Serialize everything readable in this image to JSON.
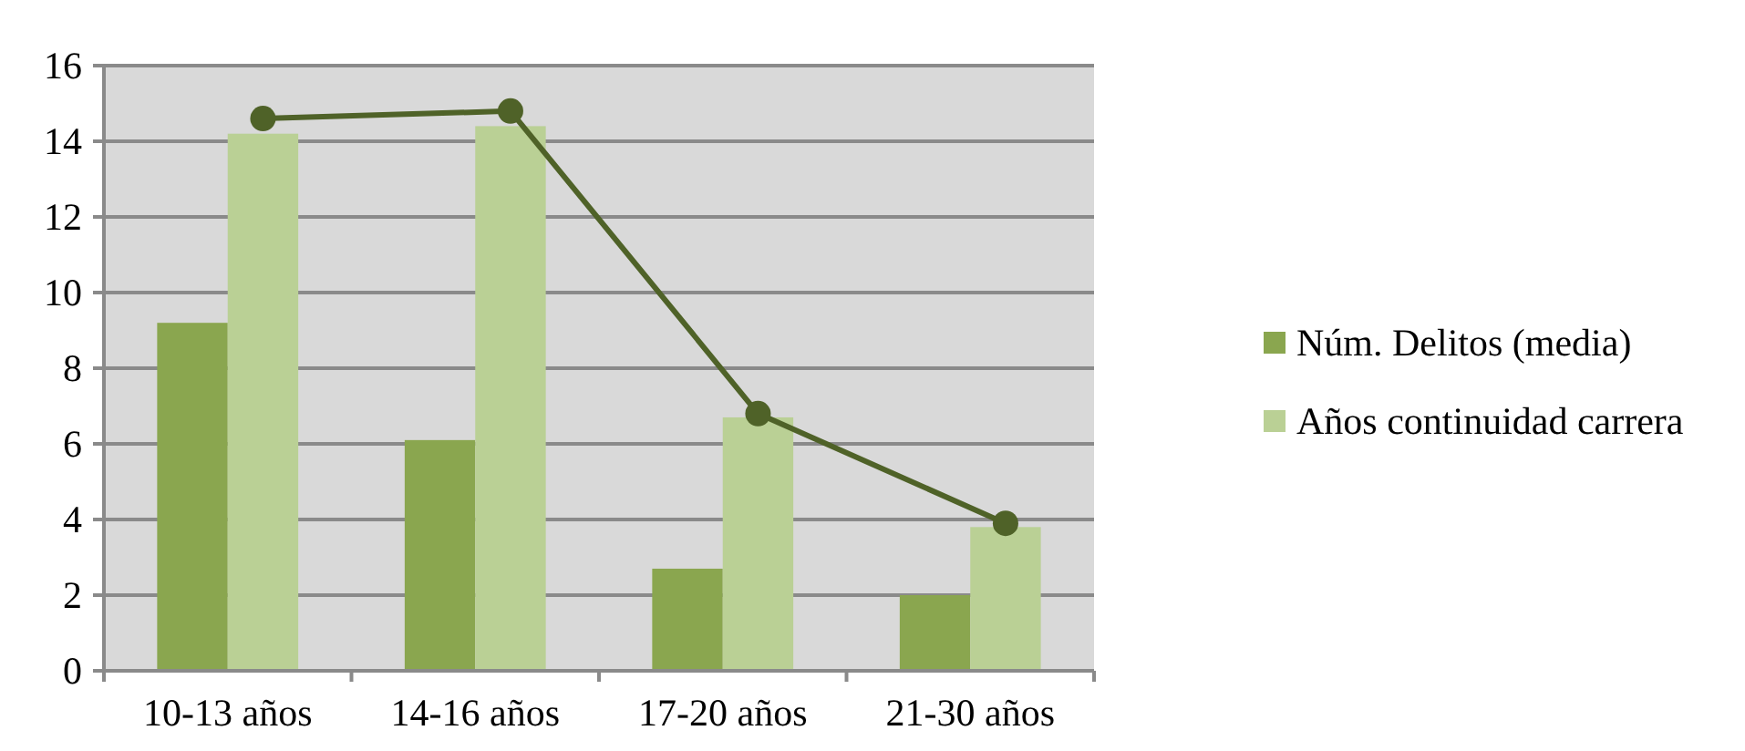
{
  "chart_data": {
    "type": "bar",
    "categories": [
      "10-13 años",
      "14-16 años",
      "17-20 años",
      "21-30 años"
    ],
    "series": [
      {
        "name": "Núm. Delitos (media)",
        "color": "#8aa64f",
        "values": [
          9.2,
          6.1,
          2.7,
          2.0
        ]
      },
      {
        "name": "Años continuidad carrera",
        "color": "#bad095",
        "values": [
          14.2,
          14.4,
          6.7,
          3.8
        ]
      },
      {
        "type": "line",
        "color": "#4f6228",
        "values": [
          14.6,
          14.8,
          6.8,
          3.9
        ]
      }
    ],
    "ylim": [
      0,
      16
    ],
    "yticks": [
      0,
      2,
      4,
      6,
      8,
      10,
      12,
      14,
      16
    ],
    "grid": "y",
    "legend": "right",
    "marker": "circle"
  }
}
